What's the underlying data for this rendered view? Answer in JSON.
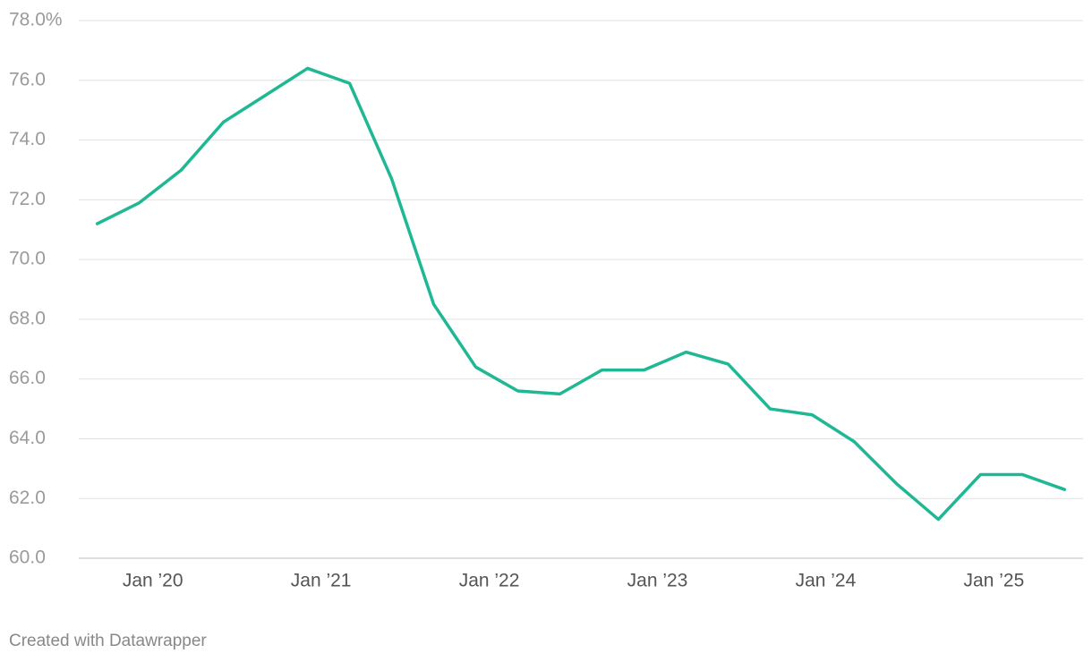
{
  "chart_data": {
    "type": "line",
    "credit": "Created with Datawrapper",
    "x": [
      2019.67,
      2019.92,
      2020.17,
      2020.42,
      2020.67,
      2020.92,
      2021.17,
      2021.42,
      2021.67,
      2021.92,
      2022.17,
      2022.42,
      2022.67,
      2022.92,
      2023.17,
      2023.42,
      2023.67,
      2023.92,
      2024.17,
      2024.42,
      2024.67,
      2024.92,
      2025.17,
      2025.42
    ],
    "series": [
      {
        "color": "#20b894",
        "values": [
          71.2,
          71.9,
          73.0,
          74.6,
          75.5,
          76.4,
          75.9,
          72.7,
          68.5,
          66.4,
          65.6,
          65.5,
          66.3,
          66.3,
          66.9,
          66.5,
          65.0,
          64.8,
          63.9,
          62.5,
          61.3,
          62.8,
          62.8,
          62.3
        ]
      }
    ],
    "xlim": [
      2019.56,
      2025.53
    ],
    "xticks": [
      {
        "value": 2020,
        "label": "Jan ’20"
      },
      {
        "value": 2021,
        "label": "Jan ’21"
      },
      {
        "value": 2022,
        "label": "Jan ’22"
      },
      {
        "value": 2023,
        "label": "Jan ’23"
      },
      {
        "value": 2024,
        "label": "Jan ’24"
      },
      {
        "value": 2025,
        "label": "Jan ’25"
      }
    ],
    "ylim": [
      60,
      78
    ],
    "yticks": [
      {
        "value": 60,
        "label": "60.0"
      },
      {
        "value": 62,
        "label": "62.0"
      },
      {
        "value": 64,
        "label": "64.0"
      },
      {
        "value": 66,
        "label": "66.0"
      },
      {
        "value": 68,
        "label": "68.0"
      },
      {
        "value": 70,
        "label": "70.0"
      },
      {
        "value": 72,
        "label": "72.0"
      },
      {
        "value": 74,
        "label": "74.0"
      },
      {
        "value": 76,
        "label": "76.0"
      },
      {
        "value": 78,
        "label": "78.0%"
      }
    ],
    "grid": true
  }
}
